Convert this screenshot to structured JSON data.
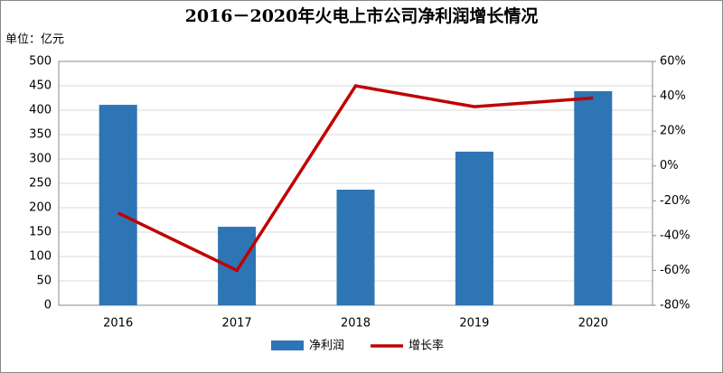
{
  "chart_data": {
    "type": "bar",
    "title": "2016－2020年火电上市公司净利润增长情况",
    "y_label": "单位：亿元",
    "categories": [
      "2016",
      "2017",
      "2018",
      "2019",
      "2020"
    ],
    "series": [
      {
        "name": "净利润",
        "type": "bar",
        "color": "#2e75b6",
        "values": [
          411,
          161,
          237,
          315,
          439
        ]
      },
      {
        "name": "增长率",
        "type": "line",
        "axis": "y2",
        "color": "#c00000",
        "values": [
          -27,
          -60,
          46,
          34,
          39
        ]
      }
    ],
    "ylim": [
      0,
      500
    ],
    "yticks": [
      0,
      50,
      100,
      150,
      200,
      250,
      300,
      350,
      400,
      450,
      500
    ],
    "y2lim": [
      -80,
      60
    ],
    "y2ticks": [
      {
        "value": -80,
        "label": "-80%"
      },
      {
        "value": -60,
        "label": "-60%"
      },
      {
        "value": -40,
        "label": "-40%"
      },
      {
        "value": -20,
        "label": "-20%"
      },
      {
        "value": 0,
        "label": "0%"
      },
      {
        "value": 20,
        "label": "20%"
      },
      {
        "value": 40,
        "label": "40%"
      },
      {
        "value": 60,
        "label": "60%"
      }
    ],
    "grid": true
  }
}
